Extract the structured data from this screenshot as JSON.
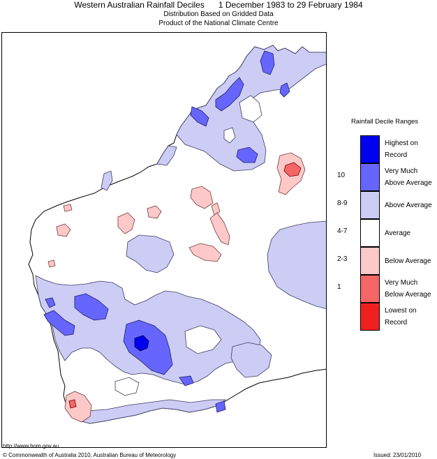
{
  "header": {
    "title": "Western Australian Rainfall Deciles      1 December 1983 to 29 February 1984",
    "subtitle1": "Distribution Based on Gridded Data",
    "subtitle2": "Product of the National Climate Centre"
  },
  "legend": {
    "title": "Rainfall Decile Ranges",
    "items": [
      {
        "range": "",
        "line1": "Highest on",
        "line2": "Record",
        "color": "#0000ee"
      },
      {
        "range": "10",
        "line1": "Very Much",
        "line2": "Above Average",
        "color": "#6666ff"
      },
      {
        "range": "8-9",
        "line1": "Above Average",
        "line2": "",
        "color": "#ccccf4"
      },
      {
        "range": "4-7",
        "line1": "Average",
        "line2": "",
        "color": "#ffffff"
      },
      {
        "range": "2-3",
        "line1": "Below Average",
        "line2": "",
        "color": "#fcc8c8"
      },
      {
        "range": "1",
        "line1": "Very Much",
        "line2": "Below Average",
        "color": "#f56666"
      },
      {
        "range": "",
        "line1": "Lowest on",
        "line2": "Record",
        "color": "#f02020"
      }
    ]
  },
  "footer": {
    "url": "http://www.bom.gov.au",
    "copyright": "© Commonwealth of Australia 2010, Australian Bureau of Meteorology",
    "issued": "Issued: 23/01/2010"
  },
  "colors": {
    "very_much_above": "#6666ff",
    "above": "#ccccf4",
    "below": "#fcc8c8",
    "very_much_below": "#f56666",
    "highest": "#0000ee",
    "outline": "#3a3a66"
  }
}
